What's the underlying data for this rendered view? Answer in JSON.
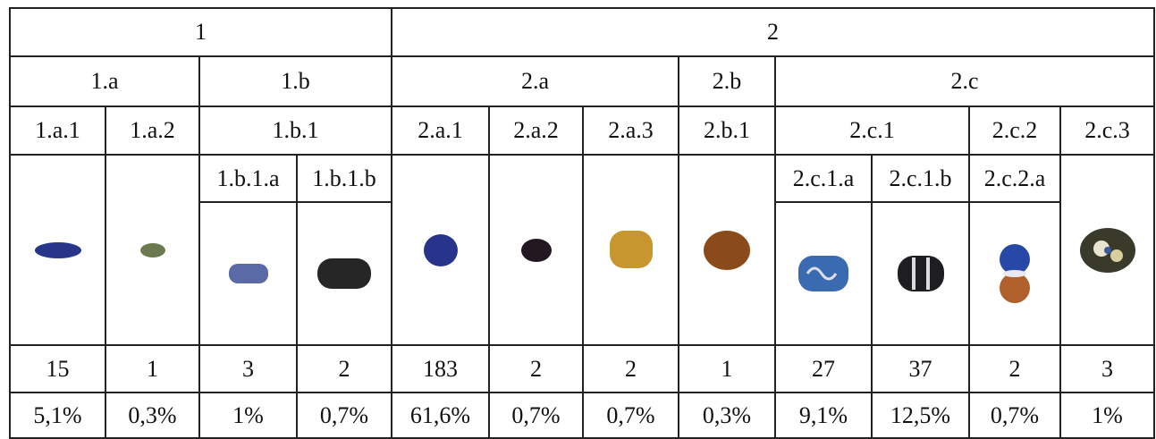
{
  "header": {
    "level1": [
      "1",
      "2"
    ],
    "level2": [
      "1.a",
      "1.b",
      "2.a",
      "2.b",
      "2.c"
    ],
    "level3": [
      "1.a.1",
      "1.a.2",
      "1.b.1",
      "2.a.1",
      "2.a.2",
      "2.a.3",
      "2.b.1",
      "2.c.1",
      "2.c.2",
      "2.c.3"
    ],
    "level4": [
      "1.b.1.a",
      "1.b.1.b",
      "2.c.1.a",
      "2.c.1.b",
      "2.c.2.a"
    ]
  },
  "table": {
    "counts": [
      15,
      1,
      3,
      2,
      183,
      2,
      2,
      1,
      27,
      37,
      2,
      3
    ],
    "percents": [
      "5,1%",
      "0,3%",
      "1%",
      "0,7%",
      "61,6%",
      "0,7%",
      "0,7%",
      "0,3%",
      "9,1%",
      "12,5%",
      "0,7%",
      "1%"
    ]
  }
}
